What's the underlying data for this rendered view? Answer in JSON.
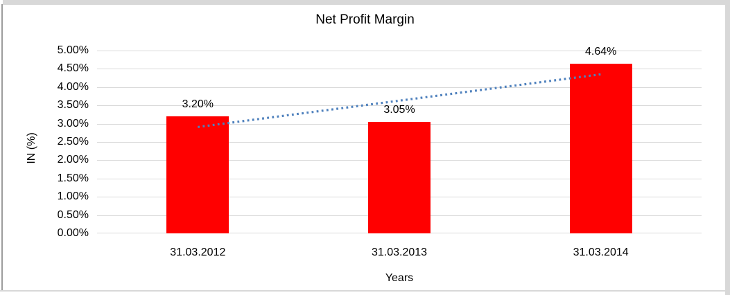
{
  "chart_data": {
    "type": "bar",
    "title": "Net Profit Margin",
    "xlabel": "Years",
    "ylabel": "IN (%)",
    "categories": [
      "31.03.2012",
      "31.03.2013",
      "31.03.2014"
    ],
    "values": [
      3.2,
      3.05,
      4.64
    ],
    "data_labels": [
      "3.20%",
      "3.05%",
      "4.64%"
    ],
    "ylim": [
      0,
      5
    ],
    "ytick_step": 0.5,
    "yticks": [
      "0.00%",
      "0.50%",
      "1.00%",
      "1.50%",
      "2.00%",
      "2.50%",
      "3.00%",
      "3.50%",
      "4.00%",
      "4.50%",
      "5.00%"
    ],
    "grid": "horizontal",
    "gridline_color": "#d9d9d9",
    "legend": "none",
    "bar_color": "#ff0000",
    "text_color": "#000000",
    "frame_color": "#d8d8d8",
    "trendline": {
      "type": "linear",
      "style": "dotted",
      "color": "#4f81bd",
      "start_value": 2.91,
      "end_value": 4.35
    }
  }
}
